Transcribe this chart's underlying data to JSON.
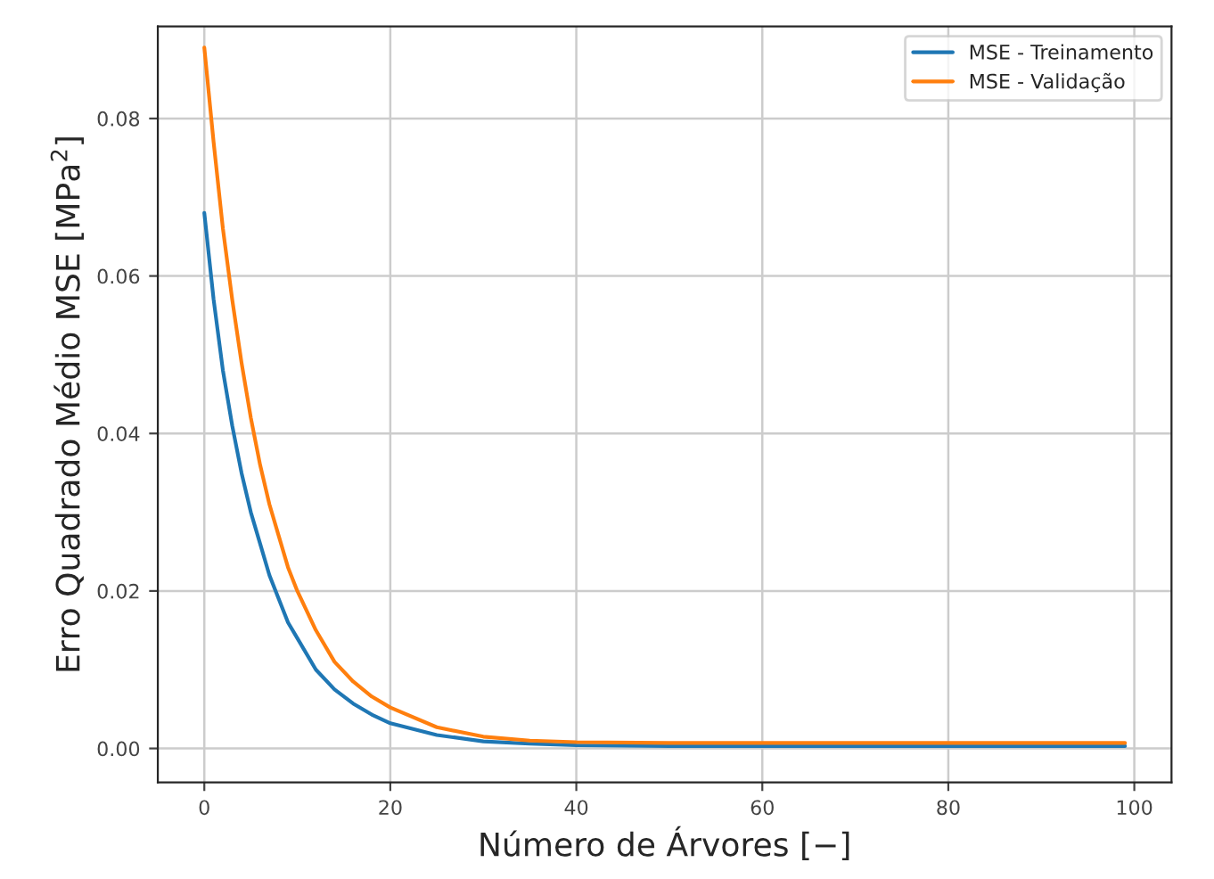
{
  "chart_data": {
    "type": "line",
    "xlabel": "Número de Árvores [−]",
    "ylabel": "Erro Quadrado Médio MSE [MPa$^{2}$]",
    "x": [
      0,
      1,
      2,
      3,
      4,
      5,
      6,
      7,
      8,
      9,
      10,
      12,
      14,
      16,
      18,
      20,
      25,
      30,
      35,
      40,
      50,
      60,
      70,
      80,
      90,
      99
    ],
    "series": [
      {
        "name": "MSE - Treinamento",
        "color": "#1f77b4",
        "values": [
          0.068,
          0.057,
          0.048,
          0.041,
          0.035,
          0.03,
          0.026,
          0.022,
          0.019,
          0.016,
          0.014,
          0.01,
          0.0075,
          0.0057,
          0.0043,
          0.0032,
          0.0017,
          0.0009,
          0.0006,
          0.0004,
          0.0003,
          0.0003,
          0.0003,
          0.0003,
          0.0003,
          0.0003
        ]
      },
      {
        "name": "MSE - Validação",
        "color": "#ff7f0e",
        "values": [
          0.089,
          0.077,
          0.066,
          0.057,
          0.049,
          0.042,
          0.036,
          0.031,
          0.027,
          0.023,
          0.02,
          0.015,
          0.011,
          0.0085,
          0.0066,
          0.0052,
          0.0027,
          0.0015,
          0.001,
          0.0008,
          0.0007,
          0.0007,
          0.0007,
          0.0007,
          0.0007,
          0.0007
        ]
      }
    ],
    "xlim": [
      -5,
      104
    ],
    "xticks": [
      0,
      20,
      40,
      60,
      80,
      100
    ],
    "ylim": [
      -0.0043,
      0.0917
    ],
    "yticks": [
      {
        "value": 0,
        "label": "0.00"
      },
      {
        "value": 0.02,
        "label": "0.02"
      },
      {
        "value": 0.04,
        "label": "0.04"
      },
      {
        "value": 0.06,
        "label": "0.06"
      },
      {
        "value": 0.08,
        "label": "0.08"
      }
    ],
    "grid": true,
    "legend": "top right"
  }
}
